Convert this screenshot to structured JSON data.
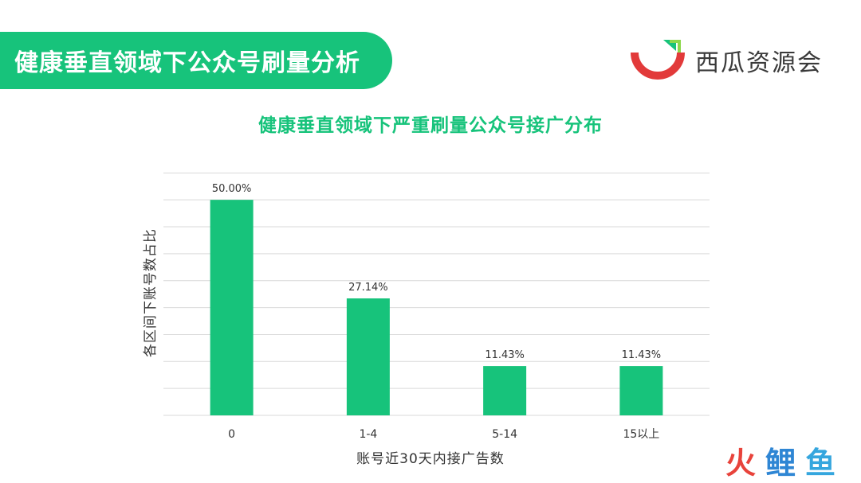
{
  "banner": {
    "title": "健康垂直领域下公众号刷量分析"
  },
  "logo": {
    "text": "西瓜资源会"
  },
  "watermark": {
    "chars": [
      "火",
      "鲤",
      "鱼"
    ]
  },
  "colors": {
    "accent": "#17c37b",
    "grid": "#d9d9d9",
    "text": "#333333"
  },
  "chart_data": {
    "type": "bar",
    "title": "健康垂直领域下严重刷量公众号接广分布",
    "xlabel": "账号近30天内接广告数",
    "ylabel": "各区间下账号数占比",
    "categories": [
      "0",
      "1-4",
      "5-14",
      "15以上"
    ],
    "values": [
      50.0,
      27.14,
      11.43,
      11.43
    ],
    "value_labels": [
      "50.00%",
      "27.14%",
      "11.43%",
      "11.43%"
    ],
    "ylim": [
      0,
      60
    ],
    "y_unit": "%",
    "ytick_step": 6.25,
    "grid": true,
    "ytick_labels_visible": false,
    "bar_color": "#17c37b"
  }
}
